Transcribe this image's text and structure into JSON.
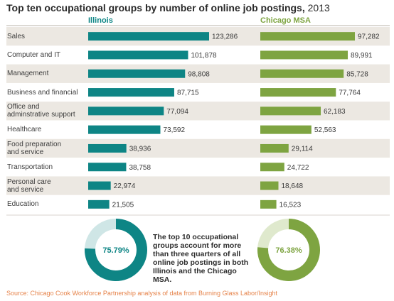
{
  "title_bold": "Top ten occupational groups by number of online job postings,",
  "title_year": " 2013",
  "colors": {
    "illinois": "#0e8585",
    "chicago": "#7ea441",
    "illinois_light": "#cfe6e6",
    "chicago_light": "#dfe9cd",
    "stripe": "#ece8e2"
  },
  "chart_data": {
    "type": "bar",
    "title": "Top ten occupational groups by number of online job postings, 2013",
    "categories": [
      "Sales",
      "Computer and IT",
      "Management",
      "Business and financial",
      "Office and\nadminstrative support",
      "Healthcare",
      "Food preparation\nand service",
      "Transportation",
      "Personal care\nand service",
      "Education"
    ],
    "series": [
      {
        "name": "Illinois",
        "values": [
          123286,
          101878,
          98808,
          87715,
          77094,
          73592,
          38936,
          38758,
          22974,
          21505
        ],
        "labels": [
          "123,286",
          "101,878",
          "98,808",
          "87,715",
          "77,094",
          "73,592",
          "38,936",
          "38,758",
          "22,974",
          "21,505"
        ]
      },
      {
        "name": "Chicago MSA",
        "values": [
          97282,
          89991,
          85728,
          77764,
          62183,
          52563,
          29114,
          24722,
          18648,
          16523
        ],
        "labels": [
          "97,282",
          "89,991",
          "85,728",
          "77,764",
          "62,183",
          "52,563",
          "29,114",
          "24,722",
          "18,648",
          "16,523"
        ]
      }
    ],
    "donuts": [
      {
        "series": "Illinois",
        "percent": 75.79,
        "label": "75.79%"
      },
      {
        "series": "Chicago MSA",
        "percent": 76.38,
        "label": "76.38%"
      }
    ]
  },
  "callout": "The top 10 occupational groups account for more than three quarters of all online job postings in both Illinois and the Chicago MSA.",
  "source": "Source: Chicago Cook Workforce Partnership analysis of data from Burning Glass Labor/Insight"
}
